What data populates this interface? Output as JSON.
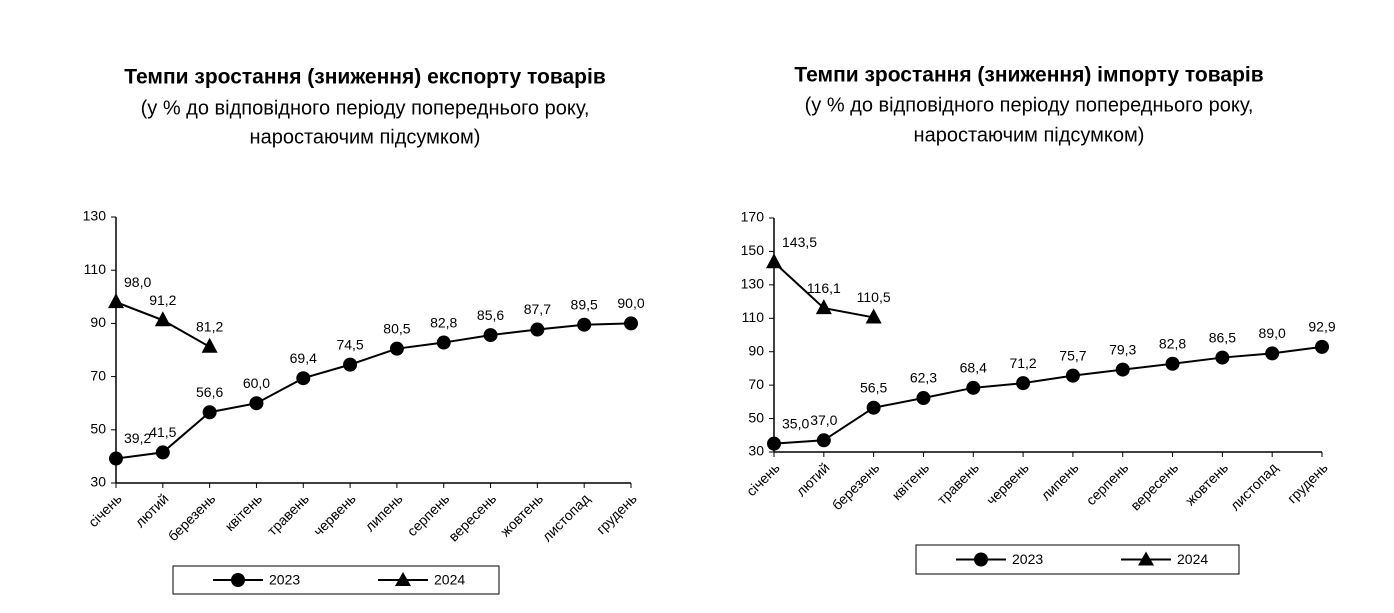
{
  "chart_data": [
    {
      "type": "line",
      "title": "Темпи зростання (зниження) експорту товарів",
      "subtitle": [
        "(у % до відповідного періоду попереднього року,",
        "наростаючим підсумком)"
      ],
      "categories": [
        "січень",
        "лютий",
        "березень",
        "квітень",
        "травень",
        "червень",
        "липень",
        "серпень",
        "вересень",
        "жовтень",
        "листопад",
        "грудень"
      ],
      "series": [
        {
          "name": "2023",
          "color": "#000000",
          "marker": "circle",
          "values": [
            39.2,
            41.5,
            56.6,
            60.0,
            69.4,
            74.5,
            80.5,
            82.8,
            85.6,
            87.7,
            89.5,
            90.0
          ],
          "value_labels": [
            "39,2",
            "41,5",
            "56,6",
            "60,0",
            "69,4",
            "74,5",
            "80,5",
            "82,8",
            "85,6",
            "87,7",
            "89,5",
            "90,0"
          ]
        },
        {
          "name": "2024",
          "color": "#000000",
          "marker": "triangle",
          "values": [
            98.0,
            91.2,
            81.2,
            null,
            null,
            null,
            null,
            null,
            null,
            null,
            null,
            null
          ],
          "value_labels": [
            "98,0",
            "91,2",
            "81,2",
            null,
            null,
            null,
            null,
            null,
            null,
            null,
            null,
            null
          ]
        }
      ],
      "ylim": [
        30,
        130
      ],
      "yticks": [
        30,
        50,
        70,
        90,
        110,
        130
      ],
      "legend": "bottom"
    },
    {
      "type": "line",
      "title": "Темпи зростання (зниження) імпорту товарів",
      "subtitle": [
        "(у % до відповідного періоду попереднього року,",
        "наростаючим підсумком)"
      ],
      "categories": [
        "січень",
        "лютий",
        "березень",
        "квітень",
        "травень",
        "червень",
        "липень",
        "серпень",
        "вересень",
        "жовтень",
        "листопад",
        "грудень"
      ],
      "series": [
        {
          "name": "2023",
          "color": "#000000",
          "marker": "circle",
          "values": [
            35.0,
            37.0,
            56.5,
            62.3,
            68.4,
            71.2,
            75.7,
            79.3,
            82.8,
            86.5,
            89.0,
            92.9
          ],
          "value_labels": [
            "35,0",
            "37,0",
            "56,5",
            "62,3",
            "68,4",
            "71,2",
            "75,7",
            "79,3",
            "82,8",
            "86,5",
            "89,0",
            "92,9"
          ]
        },
        {
          "name": "2024",
          "color": "#000000",
          "marker": "triangle",
          "values": [
            143.5,
            116.1,
            110.5,
            null,
            null,
            null,
            null,
            null,
            null,
            null,
            null,
            null
          ],
          "value_labels": [
            "143,5",
            "116,1",
            "110,5",
            null,
            null,
            null,
            null,
            null,
            null,
            null,
            null,
            null
          ]
        }
      ],
      "ylim": [
        30,
        170
      ],
      "yticks": [
        30,
        50,
        70,
        90,
        110,
        130,
        150,
        170
      ],
      "legend": "bottom"
    }
  ]
}
